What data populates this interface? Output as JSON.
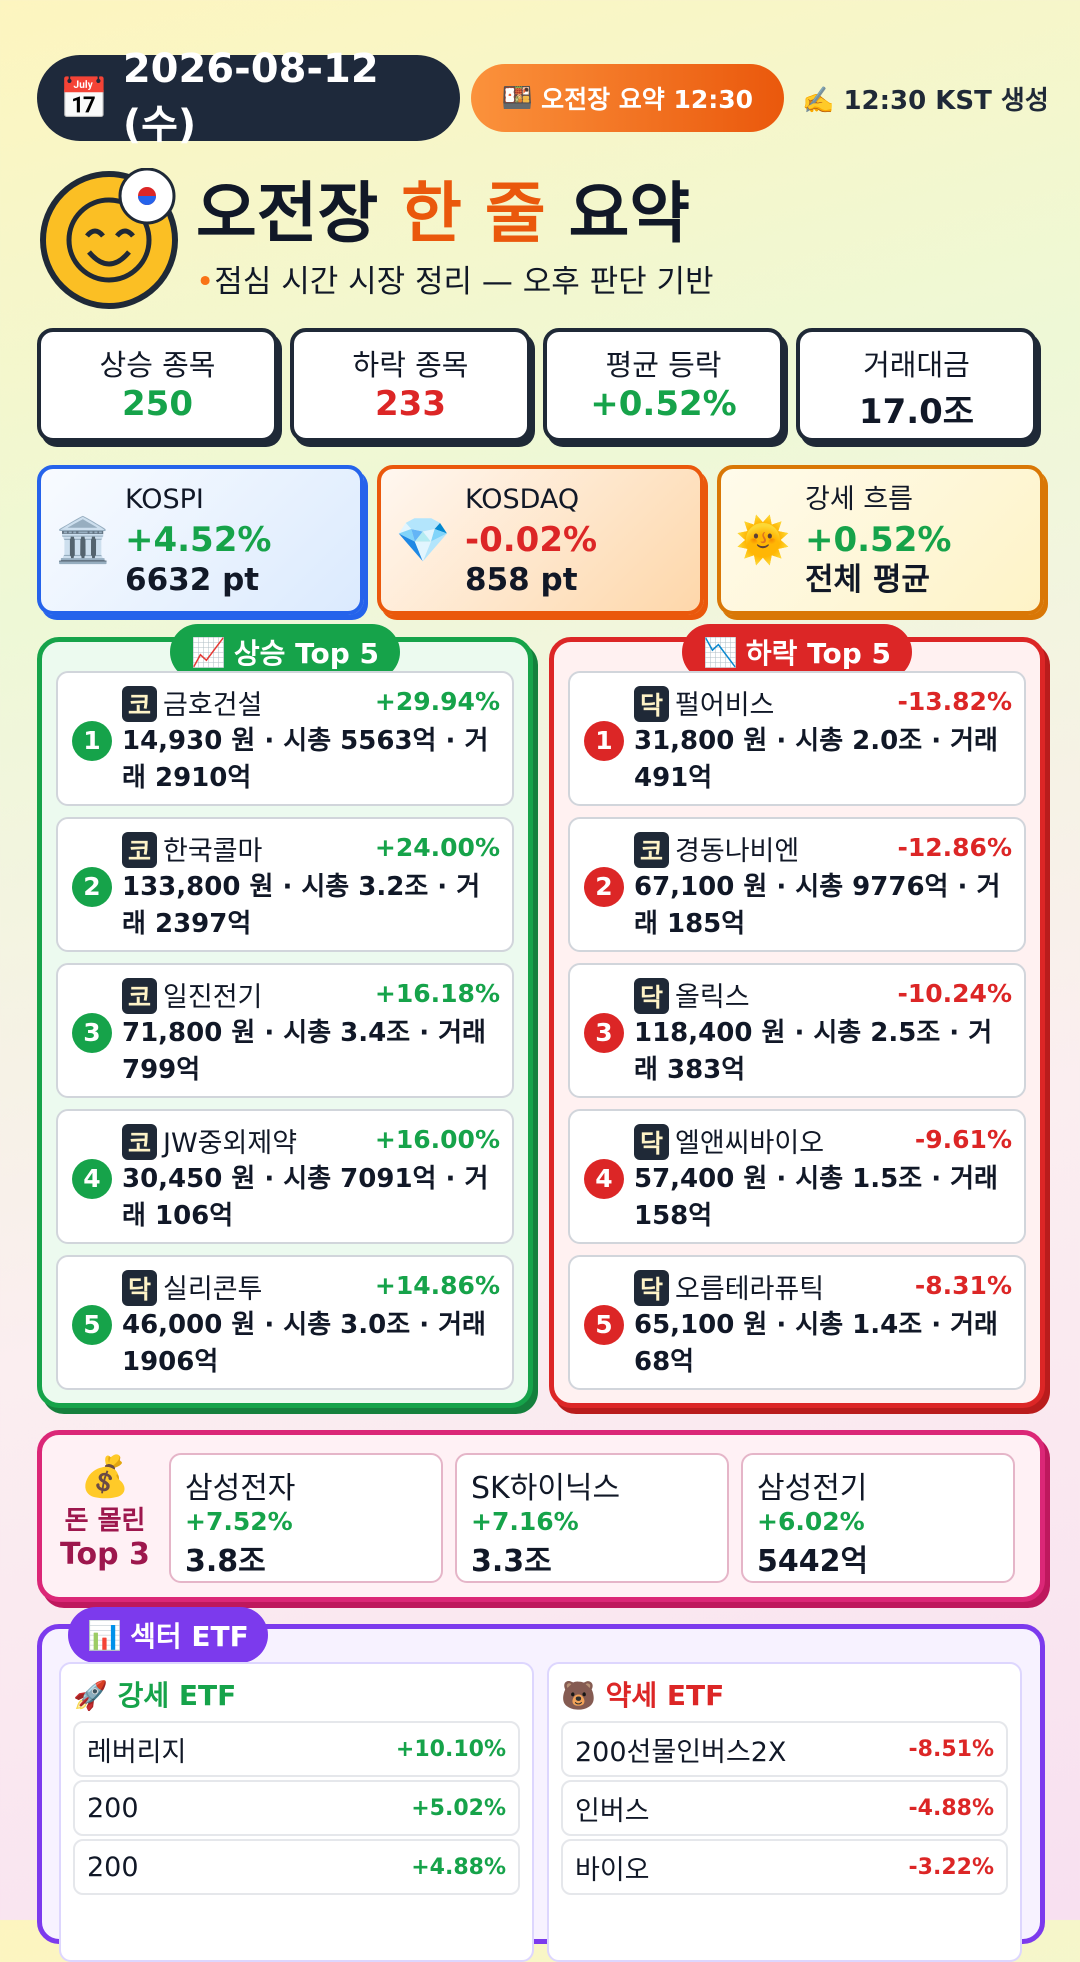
{
  "header": {
    "date": "2026-08-12 (수)",
    "badge": "오전장 요약 12:30",
    "generated": "12:30 KST 생성"
  },
  "title": {
    "prefix": "오전장",
    "highlight": "한 줄",
    "suffix": "요약",
    "subtitle": "점심 시간 시장 정리 — 오후 판단 기반"
  },
  "stats": [
    {
      "label": "상승 종목",
      "value": "250",
      "color": "#16a34a"
    },
    {
      "label": "하락 종목",
      "value": "233",
      "color": "#dc2626"
    },
    {
      "label": "평균 등락",
      "value": "+0.52%",
      "color": "#16a34a"
    },
    {
      "label": "거래대금",
      "value": "17.0조",
      "color": "#111827"
    }
  ],
  "indices": [
    {
      "name": "KOSPI",
      "change": "+4.52%",
      "value": "6632 pt",
      "color": "#16a34a"
    },
    {
      "name": "KOSDAQ",
      "change": "-0.02%",
      "value": "858 pt",
      "color": "#dc2626"
    },
    {
      "name": "강세 흐름",
      "change": "+0.52%",
      "value": "전체 평균",
      "color": "#16a34a"
    }
  ],
  "gainers": {
    "title": "상승 Top 5",
    "items": [
      {
        "rank": 1,
        "market": "코",
        "name": "금호건설",
        "change": "+29.94%",
        "detail": "14,930 원 · 시총 5563억 · 거래 2910억"
      },
      {
        "rank": 2,
        "market": "코",
        "name": "한국콜마",
        "change": "+24.00%",
        "detail": "133,800 원 · 시총 3.2조 · 거래 2397억"
      },
      {
        "rank": 3,
        "market": "코",
        "name": "일진전기",
        "change": "+16.18%",
        "detail": "71,800 원 · 시총 3.4조 · 거래 799억"
      },
      {
        "rank": 4,
        "market": "코",
        "name": "JW중외제약",
        "change": "+16.00%",
        "detail": "30,450 원 · 시총 7091억 · 거래 106억"
      },
      {
        "rank": 5,
        "market": "닥",
        "name": "실리콘투",
        "change": "+14.86%",
        "detail": "46,000 원 · 시총 3.0조 · 거래 1906억"
      }
    ]
  },
  "losers": {
    "title": "하락 Top 5",
    "items": [
      {
        "rank": 1,
        "market": "닥",
        "name": "펄어비스",
        "change": "-13.82%",
        "detail": "31,800 원 · 시총 2.0조 · 거래 491억"
      },
      {
        "rank": 2,
        "market": "코",
        "name": "경동나비엔",
        "change": "-12.86%",
        "detail": "67,100 원 · 시총 9776억 · 거래 185억"
      },
      {
        "rank": 3,
        "market": "닥",
        "name": "올릭스",
        "change": "-10.24%",
        "detail": "118,400 원 · 시총 2.5조 · 거래 383억"
      },
      {
        "rank": 4,
        "market": "닥",
        "name": "엘앤씨바이오",
        "change": "-9.61%",
        "detail": "57,400 원 · 시총 1.5조 · 거래 158억"
      },
      {
        "rank": 5,
        "market": "닥",
        "name": "오름테라퓨틱",
        "change": "-8.31%",
        "detail": "65,100 원 · 시총 1.4조 · 거래 68억"
      }
    ]
  },
  "money": {
    "label_top": "돈 몰린",
    "label_bottom": "Top 3",
    "items": [
      {
        "name": "삼성전자",
        "change": "+7.52%",
        "amount": "3.8조"
      },
      {
        "name": "SK하이닉스",
        "change": "+7.16%",
        "amount": "3.3조"
      },
      {
        "name": "삼성전기",
        "change": "+6.02%",
        "amount": "5442억"
      }
    ]
  },
  "etf": {
    "title": "섹터 ETF",
    "strong": {
      "title": "강세 ETF",
      "items": [
        {
          "name": "레버리지",
          "change": "+10.10%"
        },
        {
          "name": "200",
          "change": "+5.02%"
        },
        {
          "name": "200",
          "change": "+4.88%"
        }
      ]
    },
    "weak": {
      "title": "약세 ETF",
      "items": [
        {
          "name": "200선물인버스2X",
          "change": "-8.51%"
        },
        {
          "name": "인버스",
          "change": "-4.88%"
        },
        {
          "name": "바이오",
          "change": "-3.22%"
        }
      ]
    }
  }
}
